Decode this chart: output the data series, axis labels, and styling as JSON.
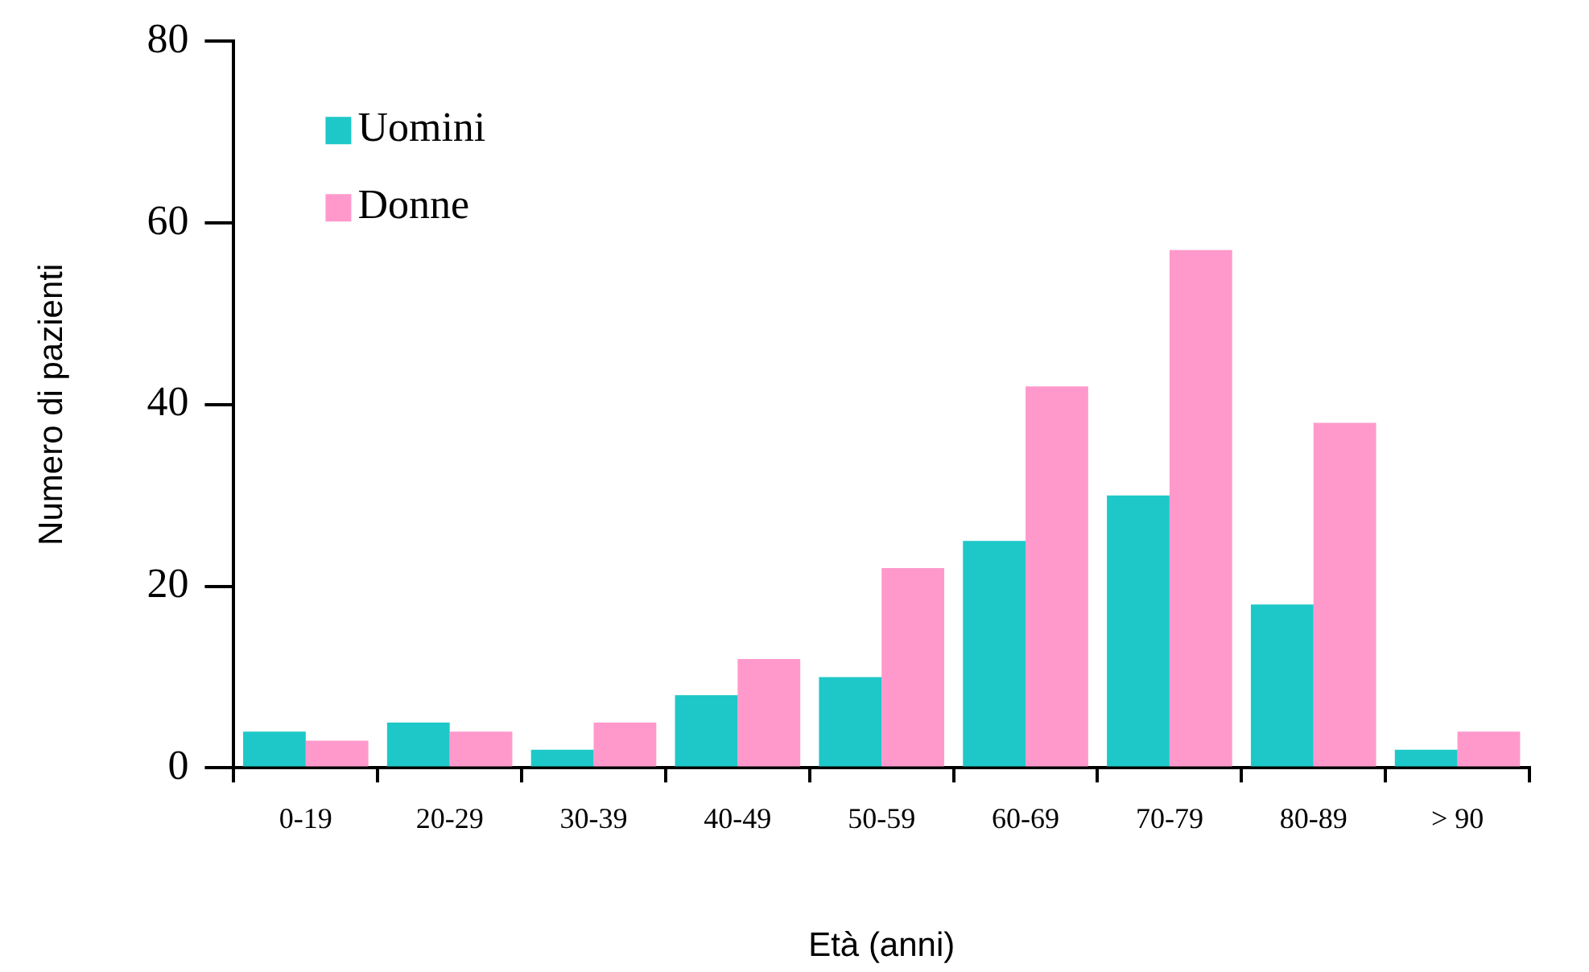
{
  "chart_data": {
    "type": "bar",
    "xlabel": "Età (anni)",
    "ylabel": "Numero di pazienti",
    "categories": [
      "0-19",
      "20-29",
      "30-39",
      "40-49",
      "50-59",
      "60-69",
      "70-79",
      "80-89",
      "> 90"
    ],
    "series": [
      {
        "name": "Uomini",
        "color": "#1fc8c8",
        "values": [
          4,
          5,
          2,
          8,
          10,
          25,
          30,
          18,
          2
        ]
      },
      {
        "name": "Donne",
        "color": "#ff99cc",
        "values": [
          3,
          4,
          5,
          12,
          22,
          42,
          57,
          38,
          4
        ]
      }
    ],
    "ylim": [
      0,
      80
    ],
    "yticks": [
      0,
      20,
      40,
      60,
      80
    ],
    "grid": false,
    "legend": "top left"
  }
}
